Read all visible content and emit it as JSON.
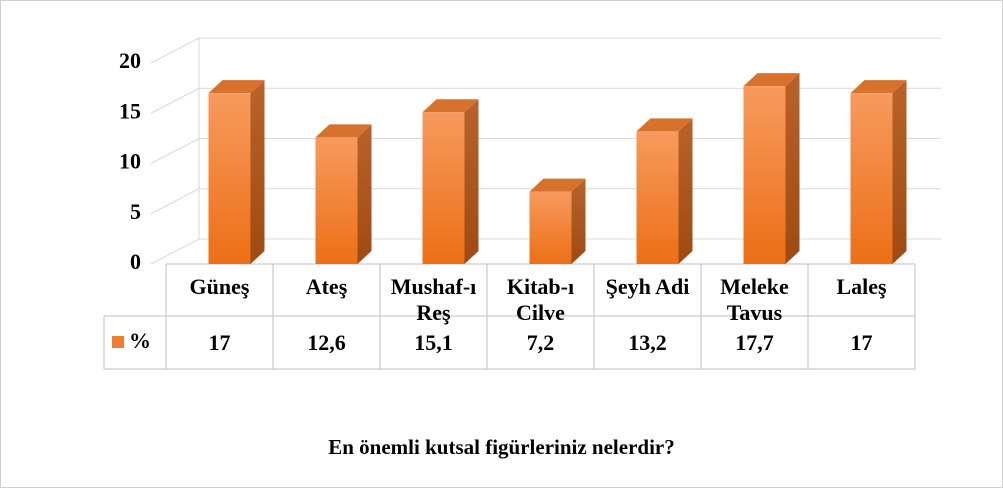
{
  "chart_data": {
    "type": "bar",
    "title": "En önemli kutsal figürleriniz nelerdir?",
    "categories": [
      "Güneş",
      "Ateş",
      "Mushaf-ı Reş",
      "Kitab-ı Cilve",
      "Şeyh Adi",
      "Meleke Tavus",
      "Laleş"
    ],
    "series": [
      {
        "name": "%",
        "color": "#ed7d31",
        "values": [
          17,
          12.6,
          15.1,
          7.2,
          13.2,
          17.7,
          17
        ],
        "value_labels": [
          "17",
          "12,6",
          "15,1",
          "7,2",
          "13,2",
          "17,7",
          "17"
        ]
      }
    ],
    "ylim": [
      0,
      20
    ],
    "yticks": [
      0,
      5,
      10,
      15,
      20
    ],
    "grid": true,
    "legend": "data-table"
  }
}
